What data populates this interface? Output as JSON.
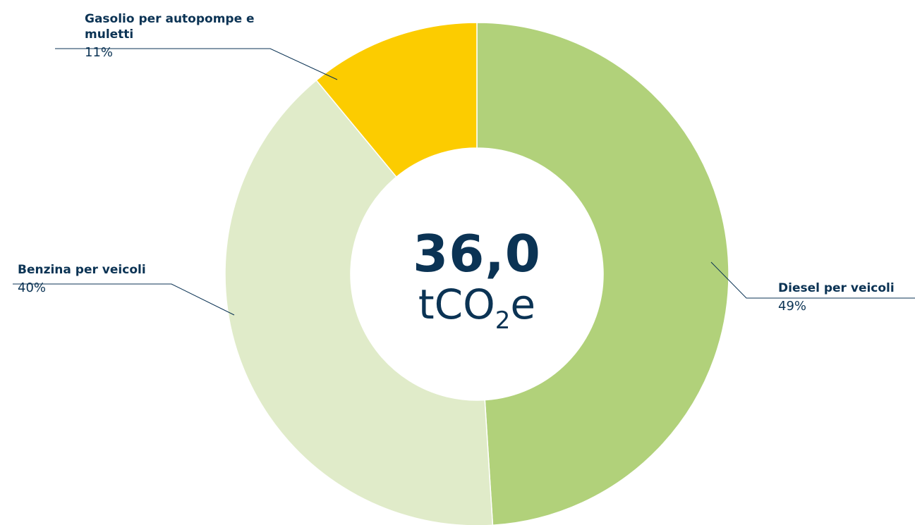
{
  "chart_data": {
    "type": "donut",
    "categories": [
      "Diesel per veicoli",
      "Benzina per veicoli",
      "Gasolio per autopompe e muletti"
    ],
    "values": [
      49,
      40,
      11
    ],
    "value_labels": [
      "49%",
      "40%",
      "11%"
    ],
    "colors": [
      "#b1d17a",
      "#e0ebc9",
      "#fccc00"
    ],
    "center_value": "36,0",
    "center_unit": [
      "tCO",
      "2",
      "e"
    ]
  }
}
